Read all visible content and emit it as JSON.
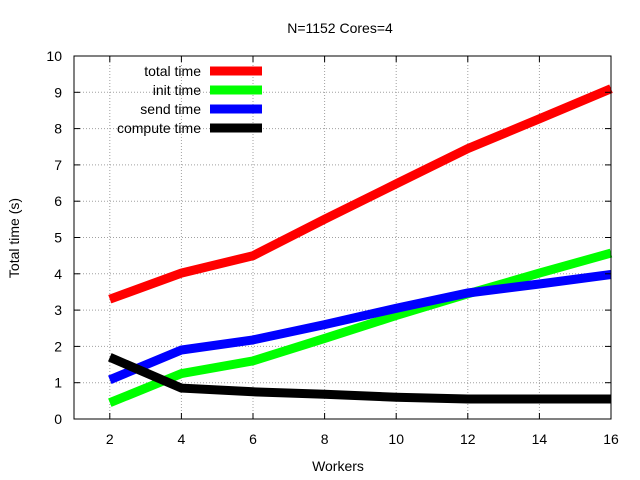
{
  "chart_data": {
    "type": "line",
    "title": "N=1152 Cores=4",
    "xlabel": "Workers",
    "ylabel": "Total time (s)",
    "x": [
      2,
      4,
      6,
      8,
      10,
      12,
      14,
      16
    ],
    "xlim": [
      1,
      16
    ],
    "ylim": [
      0,
      10
    ],
    "xticks": [
      2,
      4,
      6,
      8,
      10,
      12,
      14,
      16
    ],
    "yticks": [
      0,
      1,
      2,
      3,
      4,
      5,
      6,
      7,
      8,
      9,
      10
    ],
    "grid": true,
    "legend_position": "top-left",
    "series": [
      {
        "name": "total time",
        "color": "#ff0000",
        "values": [
          3.3,
          4.02,
          4.5,
          5.5,
          6.48,
          7.45,
          8.27,
          9.1
        ]
      },
      {
        "name": "init time",
        "color": "#00ff00",
        "values": [
          0.45,
          1.25,
          1.6,
          2.22,
          2.85,
          3.45,
          4.02,
          4.57
        ]
      },
      {
        "name": "send time",
        "color": "#0000ff",
        "values": [
          1.08,
          1.9,
          2.18,
          2.6,
          3.05,
          3.47,
          3.72,
          3.98
        ]
      },
      {
        "name": "compute time",
        "color": "#000000",
        "values": [
          1.7,
          0.85,
          0.75,
          0.68,
          0.6,
          0.55,
          0.55,
          0.55
        ]
      }
    ]
  }
}
